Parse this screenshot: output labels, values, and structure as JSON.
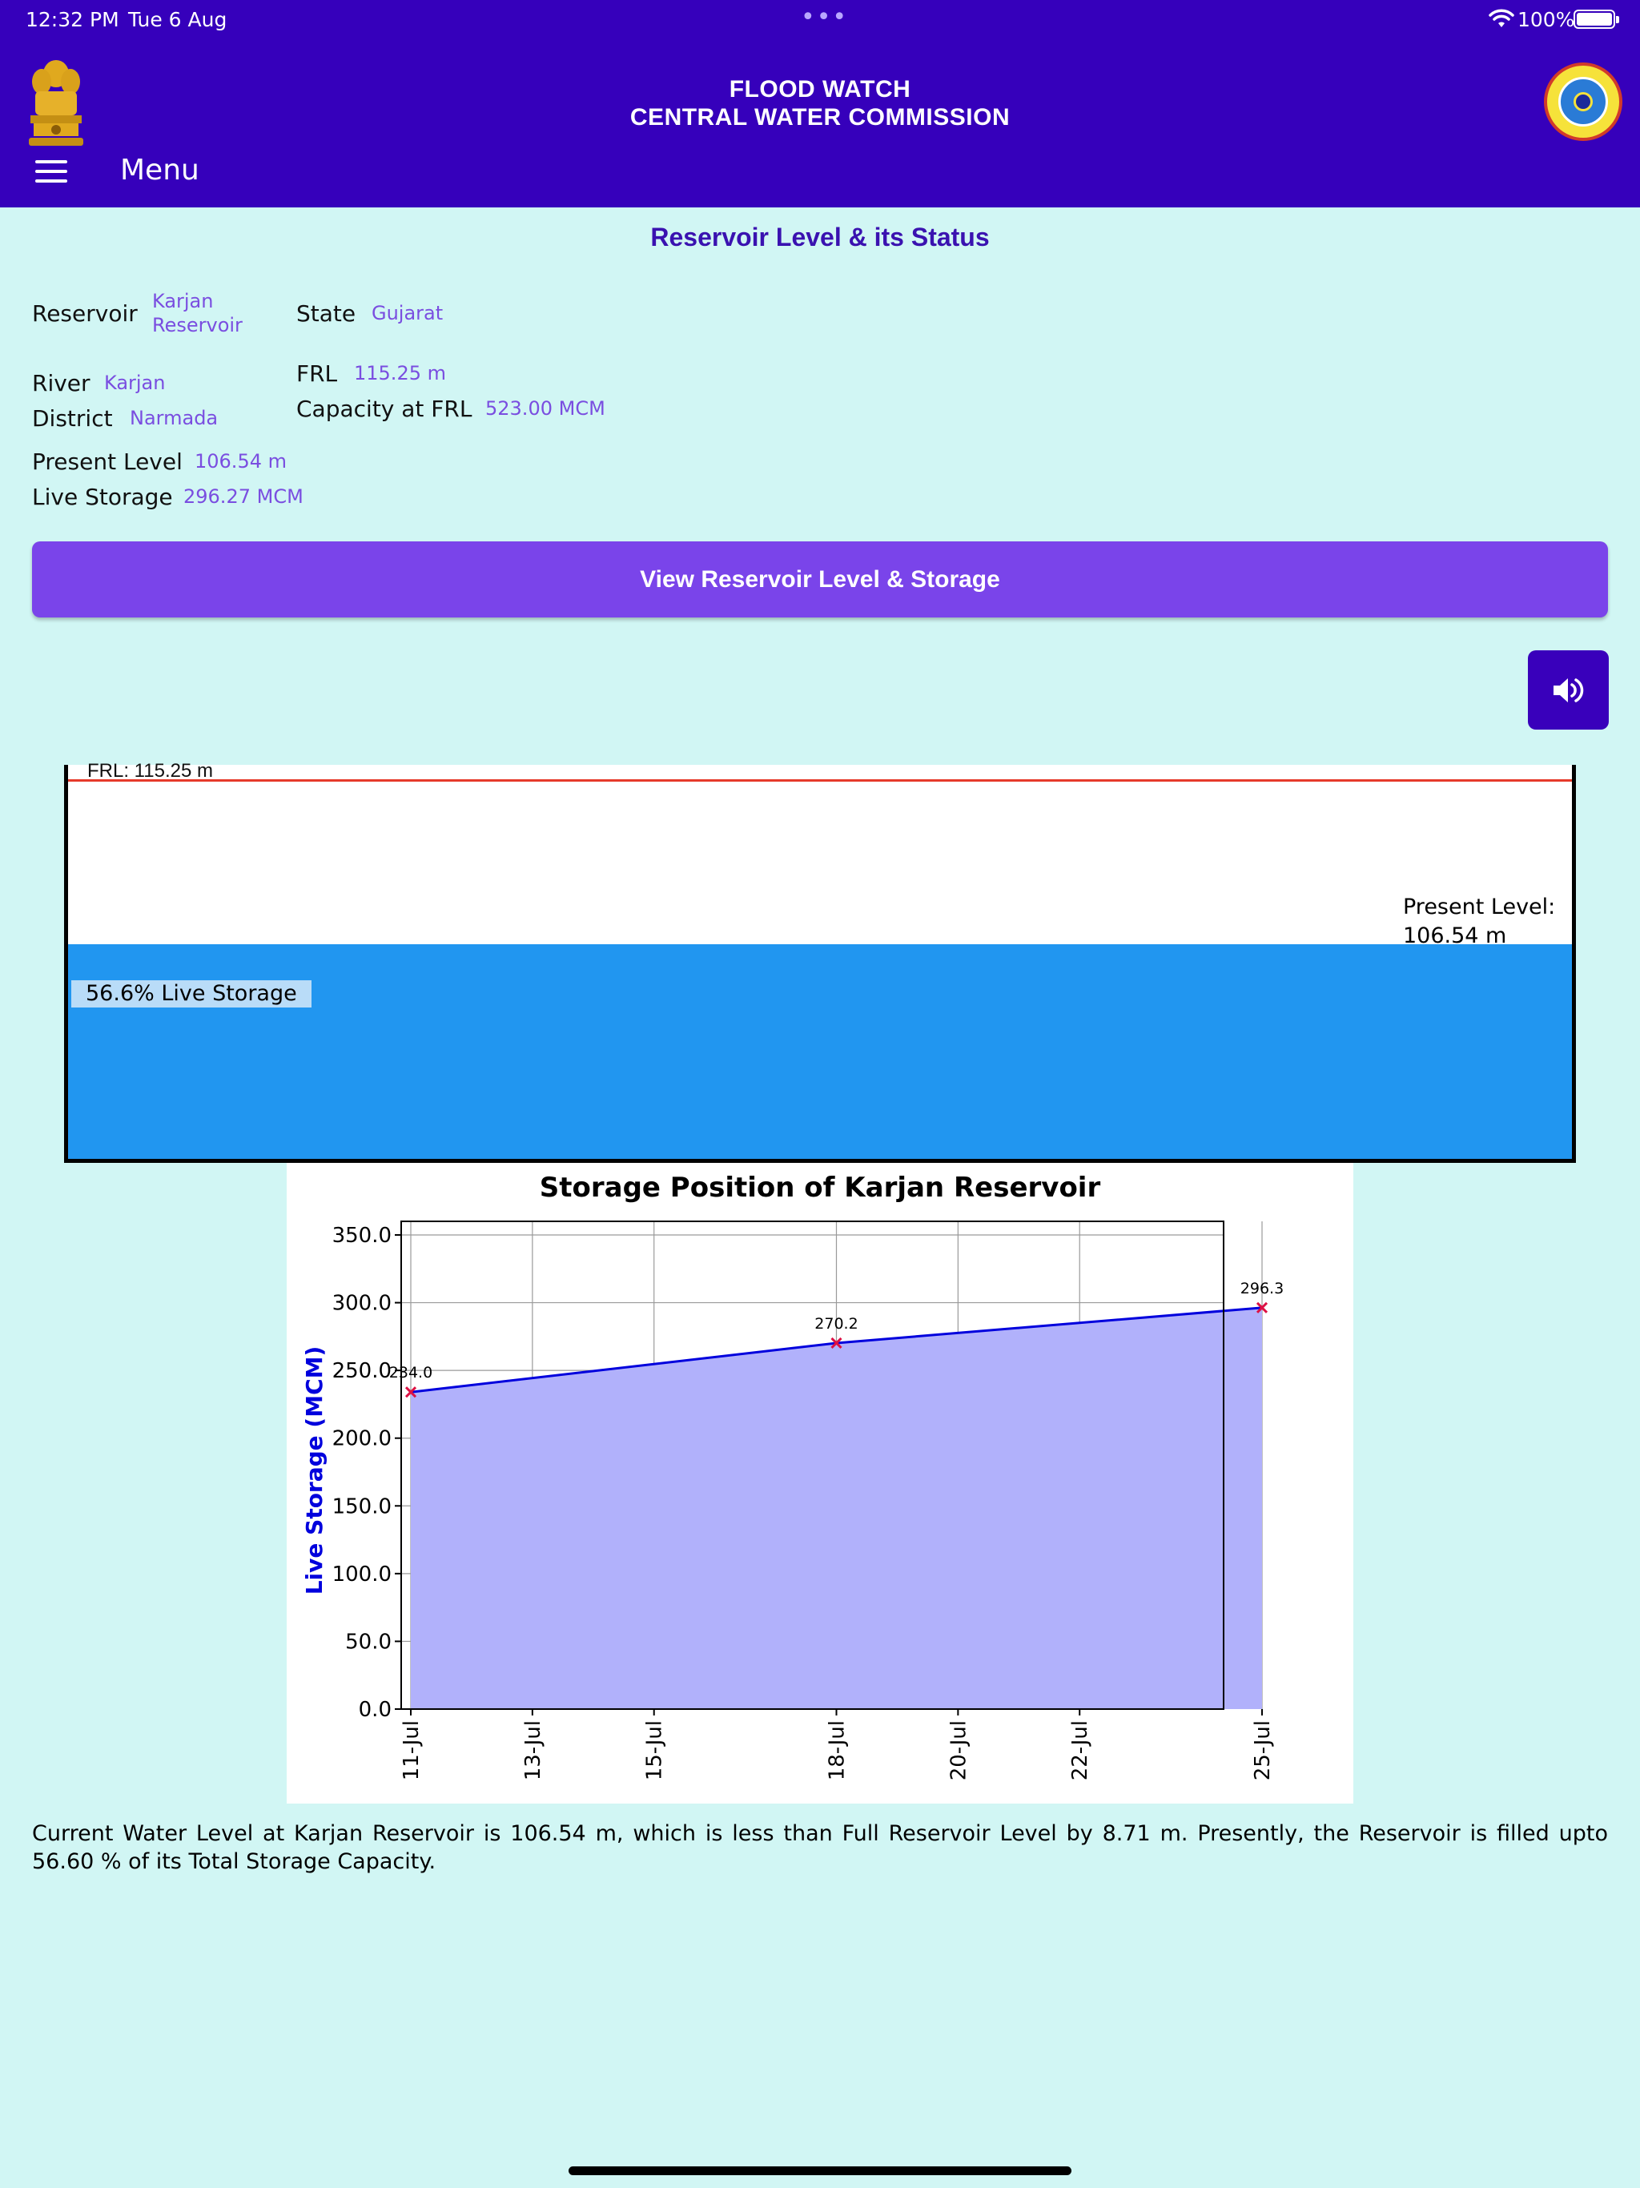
{
  "status_bar": {
    "time": "12:32 PM",
    "date": "Tue 6 Aug",
    "dots": "•••",
    "battery": "100%"
  },
  "header": {
    "title_line1": "FLOOD WATCH",
    "title_line2": "CENTRAL WATER COMMISSION",
    "menu_label": "Menu"
  },
  "section_title": "Reservoir Level & its Status",
  "info": {
    "reservoir_label": "Reservoir",
    "reservoir_value_1": "Karjan",
    "reservoir_value_2": "Reservoir",
    "state_label": "State",
    "state_value": "Gujarat",
    "river_label": "River",
    "river_value": "Karjan",
    "frl_label": "FRL",
    "frl_value": "115.25 m",
    "district_label": "District",
    "district_value": "Narmada",
    "capacity_label": "Capacity at FRL",
    "capacity_value": "523.00 MCM",
    "present_level_label": "Present Level",
    "present_level_value": "106.54 m",
    "live_storage_label": "Live Storage",
    "live_storage_value": "296.27 MCM"
  },
  "action_button": "View Reservoir Level & Storage",
  "tank": {
    "frl_text": "FRL: 115.25 m",
    "present_level_line1": "Present Level:",
    "present_level_line2": "106.54 m",
    "live_storage_text": "56.6% Live Storage",
    "fill_fraction": 0.566
  },
  "chart_data": {
    "type": "area",
    "title": "Storage Position of Karjan Reservoir",
    "ylabel": "Live Storage (MCM)",
    "xlabel": "",
    "x_ticks": [
      "11-Jul",
      "13-Jul",
      "15-Jul",
      "18-Jul",
      "20-Jul",
      "22-Jul",
      "25-Jul"
    ],
    "y_ticks": [
      "0.0",
      "50.0",
      "100.0",
      "150.0",
      "200.0",
      "250.0",
      "300.0",
      "350.0"
    ],
    "ylim": [
      0,
      350
    ],
    "points": [
      {
        "x": "11-Jul",
        "y": 234.0,
        "label": "234.0"
      },
      {
        "x": "18-Jul",
        "y": 270.2,
        "label": "270.2"
      },
      {
        "x": "25-Jul",
        "y": 296.3,
        "label": "296.3"
      }
    ],
    "grid": true,
    "line_color": "#0000dd",
    "fill_color": "#b1b1fb",
    "marker_color": "#dd1144"
  },
  "summary": "Current Water Level at Karjan Reservoir is 106.54 m, which is less than Full Reservoir Level by 8.71 m. Presently, the Reservoir is filled upto 56.60 % of its Total Storage Capacity."
}
